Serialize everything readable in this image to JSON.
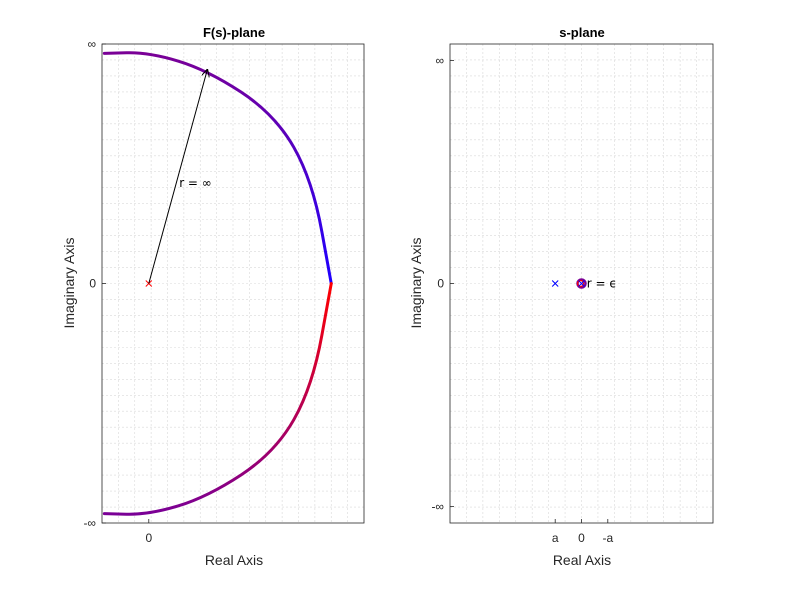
{
  "chart_data": [
    {
      "type": "line",
      "title": "F(s)-plane",
      "xlabel": "Real Axis",
      "ylabel": "Imaginary Axis",
      "xlim": [
        -0.2,
        0.92
      ],
      "ylim": [
        -1.02,
        1.02
      ],
      "xtick_labels": [
        {
          "x": 0,
          "label": "0"
        }
      ],
      "ytick_labels": [
        {
          "y": -1.02,
          "label": "-∞"
        },
        {
          "y": 0,
          "label": "0"
        },
        {
          "y": 1.02,
          "label": "∞"
        }
      ],
      "grid": true,
      "series": [
        {
          "segment": "upper",
          "color_start": "#1f00ff",
          "color_end": "#7a0096",
          "points": [
            [
              0.78,
              0
            ],
            [
              0.7,
              0.44
            ],
            [
              0.54,
              0.72
            ],
            [
              0.25,
              0.91
            ],
            [
              0,
              0.985
            ],
            [
              -0.19,
              0.98
            ]
          ]
        },
        {
          "segment": "lower",
          "color_start": "#ff0000",
          "color_end": "#7a0096",
          "points": [
            [
              0.78,
              0
            ],
            [
              0.7,
              -0.44
            ],
            [
              0.54,
              -0.72
            ],
            [
              0.25,
              -0.91
            ],
            [
              0,
              -0.985
            ],
            [
              -0.19,
              -0.98
            ]
          ]
        }
      ],
      "poles": [
        {
          "x": 0,
          "y": 0,
          "marker": "x",
          "color": "#ff0000"
        }
      ],
      "annotation": {
        "text": "r = ∞",
        "from": [
          0,
          0
        ],
        "to": [
          0.25,
          0.91
        ],
        "text_at": [
          0.13,
          0.41
        ]
      }
    },
    {
      "type": "scatter",
      "title": "s-plane",
      "xlabel": "Real Axis",
      "ylabel": "Imaginary Axis",
      "xlim": [
        -1,
        1
      ],
      "ylim": [
        -1.02,
        1.02
      ],
      "xtick_labels": [
        {
          "x": -0.2,
          "label": "a"
        },
        {
          "x": 0,
          "label": "0"
        },
        {
          "x": 0.2,
          "label": "-a"
        }
      ],
      "ytick_labels": [
        {
          "y": -0.95,
          "label": "-∞"
        },
        {
          "y": 0,
          "label": "0"
        },
        {
          "y": 0.95,
          "label": "∞"
        }
      ],
      "grid": true,
      "poles": [
        {
          "x": -0.2,
          "y": 0,
          "marker": "x",
          "color": "#0000ff"
        },
        {
          "x": 0,
          "y": 0,
          "marker": "x",
          "color": "#0000ff"
        }
      ],
      "contour": {
        "type": "small-circle",
        "center": [
          0,
          0
        ],
        "color": "#7a0096"
      },
      "annotation": {
        "text": "r = ϵ",
        "at": [
          0.04,
          0
        ]
      }
    }
  ]
}
